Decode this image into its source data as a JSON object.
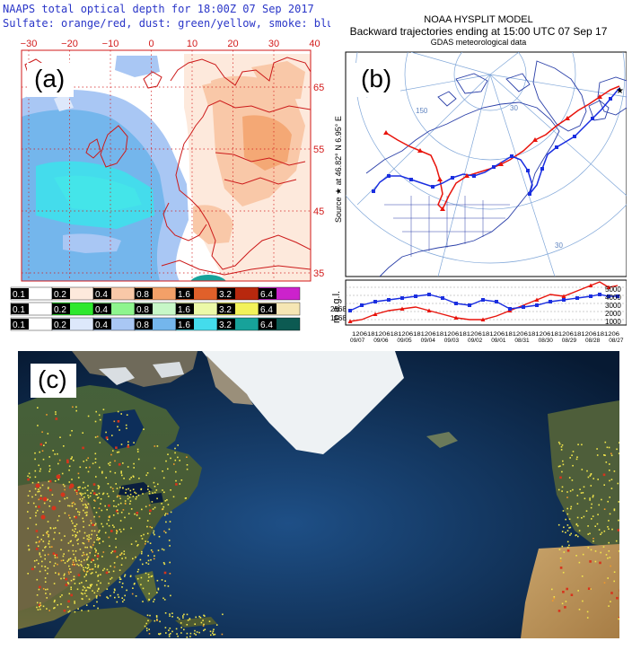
{
  "panel_a": {
    "label": "(a)",
    "title_line1": "NAAPS total optical depth for 18:00Z 07 Sep 2017",
    "title_line2": "Sulfate: orange/red, dust: green/yellow, smoke: blue",
    "lon_ticks": [
      "−30",
      "−20",
      "−10",
      "0",
      "10",
      "20",
      "30",
      "40"
    ],
    "lat_ticks": [
      "65",
      "55",
      "45",
      "35"
    ],
    "colorbars": [
      {
        "name": "sulfate",
        "labels": [
          "0.1",
          "0.2",
          "0.4",
          "0.8",
          "1.6",
          "3.2",
          "6.4"
        ],
        "colors": [
          "#ffffff",
          "#fde9dc",
          "#f9c8a8",
          "#f3a068",
          "#e0602a",
          "#b8280e",
          "#cc22cc"
        ]
      },
      {
        "name": "dust",
        "labels": [
          "0.1",
          "0.2",
          "0.4",
          "0.8",
          "1.6",
          "3.2",
          "6.4"
        ],
        "colors": [
          "#ffffff",
          "#2ee82e",
          "#8ef58e",
          "#c7f7c7",
          "#ecf9a8",
          "#f2f25a",
          "#f5e6b4"
        ]
      },
      {
        "name": "smoke",
        "labels": [
          "0.1",
          "0.2",
          "0.4",
          "0.8",
          "1.6",
          "3.2",
          "6.4"
        ],
        "colors": [
          "#ffffff",
          "#dde8fb",
          "#a9c7f4",
          "#74b6ec",
          "#44dcec",
          "#17a29a",
          "#0c5a52"
        ]
      }
    ]
  },
  "panel_b": {
    "label": "(b)",
    "title1": "NOAA HYSPLIT MODEL",
    "title2": "Backward trajectories ending at 15:00 UTC 07 Sep 17",
    "title3": "GDAS meteorological data",
    "source_label": "Source ★ at  46.82° N   6.95° E",
    "meridian_labels": [
      "150",
      "30",
      "30"
    ],
    "height_axis_label": "m a.g.l.",
    "left_heights": [
      "2568",
      "1568"
    ],
    "right_heights": [
      "5000",
      "4000",
      "3000",
      "2000",
      "1000"
    ],
    "hour_ticks": "1206181206181206181206181206181206181206181206181206181206181206181206",
    "date_ticks": [
      "09/07",
      "09/06",
      "09/05",
      "09/04",
      "09/03",
      "09/02",
      "09/01",
      "08/31",
      "08/30",
      "08/29",
      "08/28",
      "08/27"
    ],
    "series_colors": {
      "low": "#e8140c",
      "high": "#1a2ee0"
    }
  },
  "panel_c": {
    "label": "(c)",
    "fire_colors": [
      "#f2e64a",
      "#f39a2a",
      "#d7341c"
    ]
  }
}
